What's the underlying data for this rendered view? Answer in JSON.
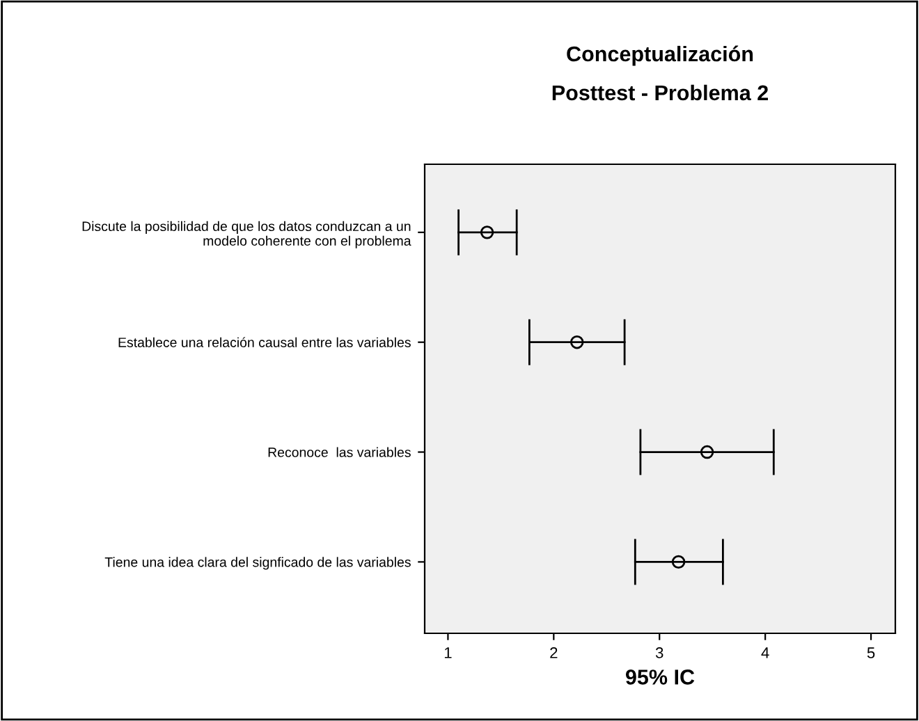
{
  "chart_data": {
    "type": "scatter",
    "orientation": "horizontal",
    "title": "Conceptualización",
    "subtitle": "Posttest - Problema 2",
    "xlabel": "95% IC",
    "categories": [
      "Discute la posibilidad de que los datos conduzcan a un\nmodelo coherente con el problema",
      "Establece una relación causal entre las variables",
      "Reconoce  las variables",
      "Tiene una idea clara del signficado de las variables"
    ],
    "values": [
      1.37,
      2.22,
      3.45,
      3.18
    ],
    "errors": [
      [
        1.1,
        1.65
      ],
      [
        1.77,
        2.67
      ],
      [
        2.82,
        4.08
      ],
      [
        2.77,
        3.6
      ]
    ],
    "color": "#000000",
    "marker": "circle",
    "grid": false,
    "legend": false,
    "xlim": [
      0.78,
      5.23
    ],
    "xticks": [
      1,
      2,
      3,
      4,
      5
    ]
  }
}
